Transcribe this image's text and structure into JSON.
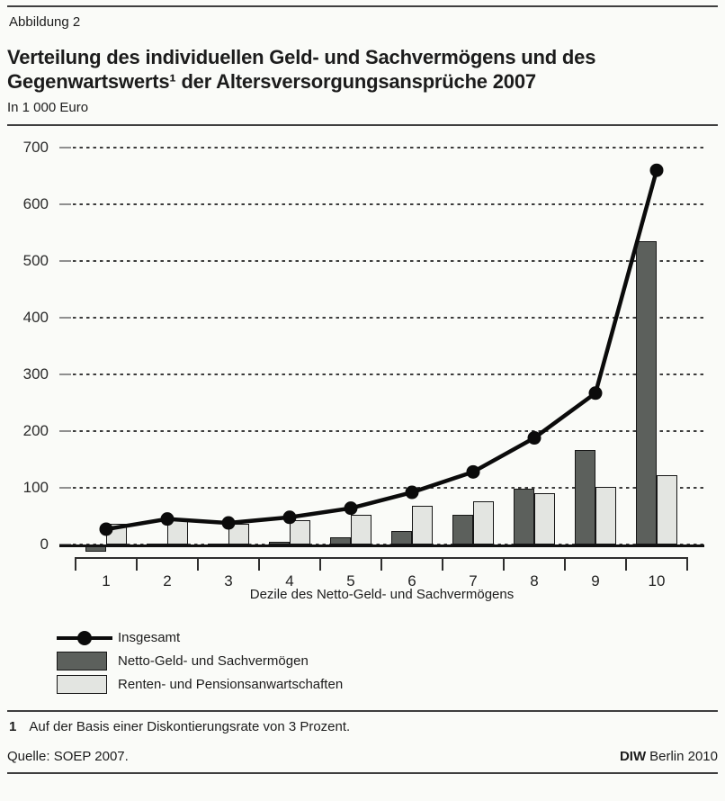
{
  "page": {
    "figure_label": "Abbildung 2",
    "title_line1": "Verteilung des individuellen Geld- und Sachvermögens und des",
    "title_line2": "Gegenwartswerts¹ der Altersversorgungsansprüche 2007",
    "subtitle": "In 1 000 Euro",
    "footnote_marker": "1",
    "footnote_text": "Auf der Basis einer Diskontierungsrate von 3 Prozent.",
    "source": "Quelle: SOEP 2007.",
    "publisher_bold": "DIW",
    "publisher_rest": "Berlin 2010"
  },
  "chart_data": {
    "type": "bar",
    "subtype": "grouped bars with overlaid line",
    "title": "Verteilung des individuellen Geld- und Sachvermögens und des Gegenwartswerts¹ der Altersversorgungsansprüche 2007",
    "unit_label": "In 1 000 Euro",
    "categories": [
      "1",
      "2",
      "3",
      "4",
      "5",
      "6",
      "7",
      "8",
      "9",
      "10"
    ],
    "xlabel": "Dezile des Netto-Geld- und Sachvermögens",
    "ylabel": "In 1 000 Euro",
    "ylim": [
      0,
      700
    ],
    "yticks": [
      0,
      100,
      200,
      300,
      400,
      500,
      600,
      700
    ],
    "grid": "horizontal dotted",
    "legend_position": "below-left",
    "series": [
      {
        "name": "Insgesamt",
        "kind": "line",
        "color": "#0b0b0b",
        "values": [
          27,
          45,
          38,
          48,
          64,
          92,
          128,
          188,
          267,
          660
        ]
      },
      {
        "name": "Netto-Geld- und Sachvermögen",
        "kind": "bar",
        "color": "#5c605c",
        "values": [
          -10,
          1,
          2,
          5,
          12,
          24,
          52,
          98,
          167,
          535
        ]
      },
      {
        "name": "Renten- und Pensionsanwartschaften",
        "kind": "bar",
        "color": "#e3e5e1",
        "values": [
          37,
          44,
          36,
          43,
          52,
          68,
          76,
          90,
          101,
          123
        ]
      }
    ]
  }
}
